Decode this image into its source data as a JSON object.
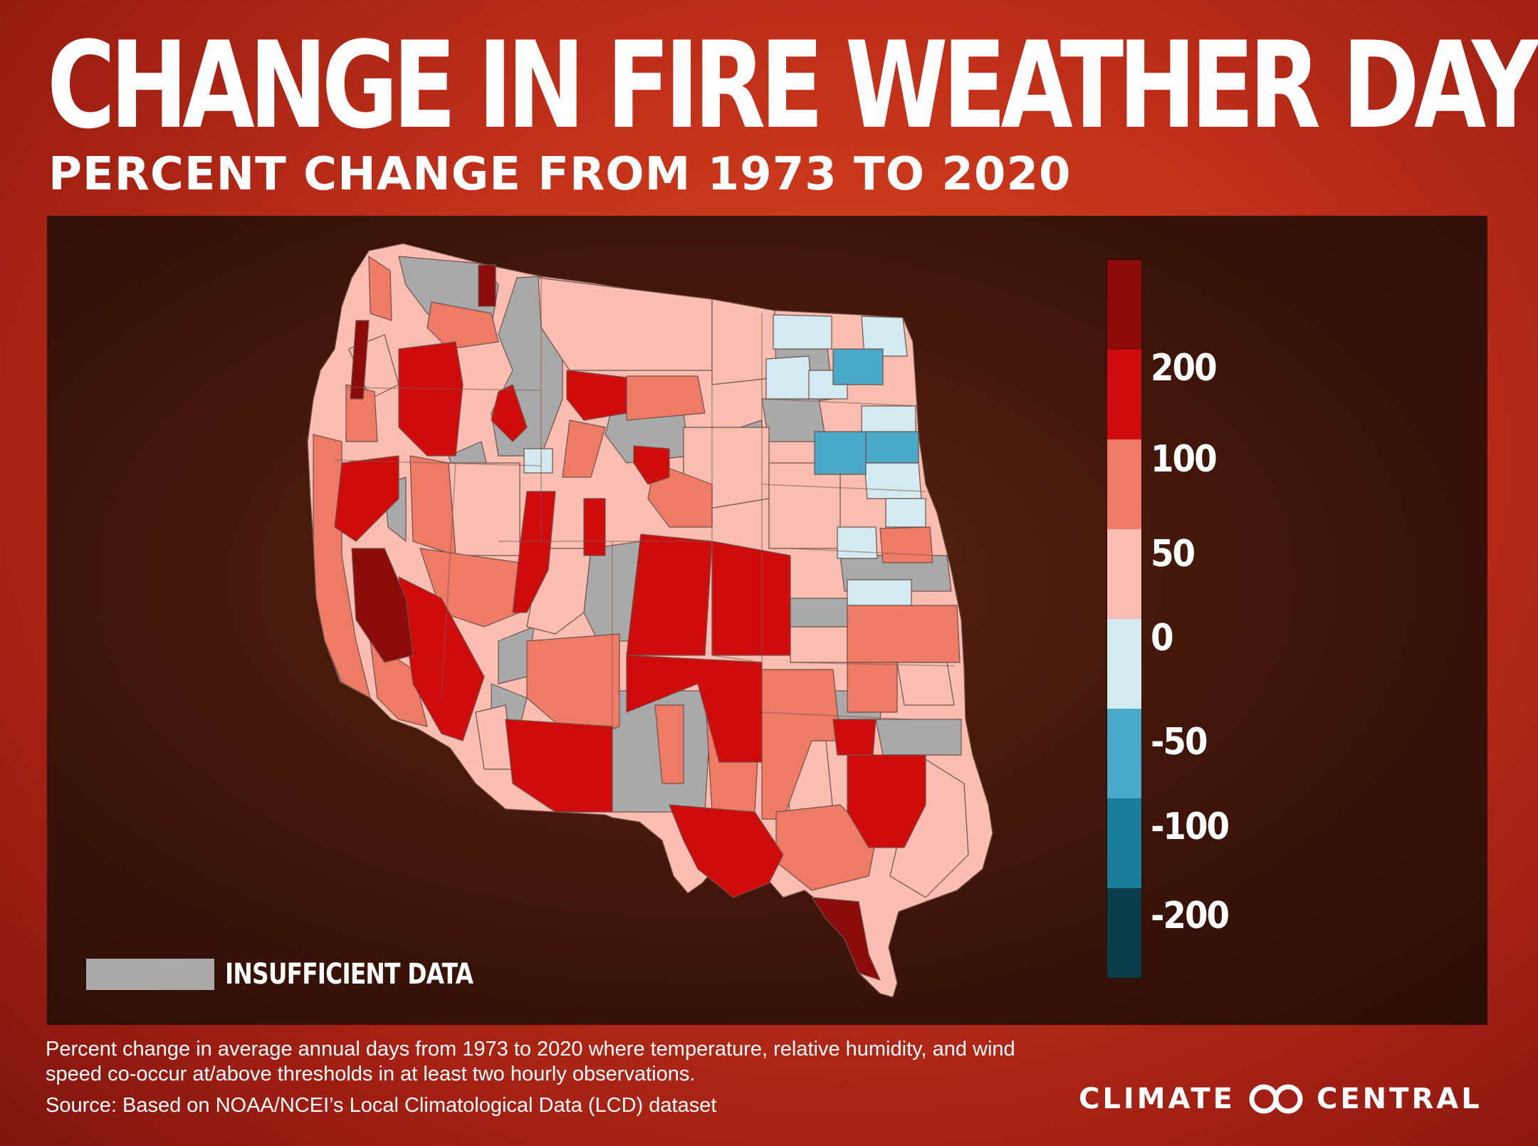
{
  "header": {
    "title": "CHANGE IN FIRE WEATHER DAYS",
    "subtitle": "PERCENT CHANGE FROM 1973 TO 2020"
  },
  "legend": {
    "labels": [
      "200",
      "100",
      "50",
      "0",
      "-50",
      "-100",
      "-200"
    ],
    "colors": [
      "#8c0b0b",
      "#cf0b0b",
      "#ee7b66",
      "#f9bdb2",
      "#d3eaf0",
      "#4aa9c9",
      "#1a7d99",
      "#0a3c49"
    ],
    "insufficient_label": "INSUFFICIENT DATA",
    "insufficient_color": "#a9a9a9"
  },
  "colors": {
    "panel": "#3e1509",
    "insufficient": "#a9a9a9",
    "strong_increase": "#8c0b0b",
    "high_increase": "#cf0b0b",
    "moderate_increase": "#ee7b66",
    "small_increase": "#f9bdb2",
    "slight_decrease": "#d3eaf0",
    "moderate_decrease": "#4aa9c9"
  },
  "footer": {
    "caption": "Percent change in average annual days from 1973 to 2020 where temperature, relative humidity, and wind speed co-occur at/above thresholds in at least two hourly observations.",
    "source": "Source: Based on NOAA/NCEI’s Local Climatological Data (LCD) dataset",
    "brand_left": "CLIMATE",
    "brand_right": "CENTRAL"
  }
}
